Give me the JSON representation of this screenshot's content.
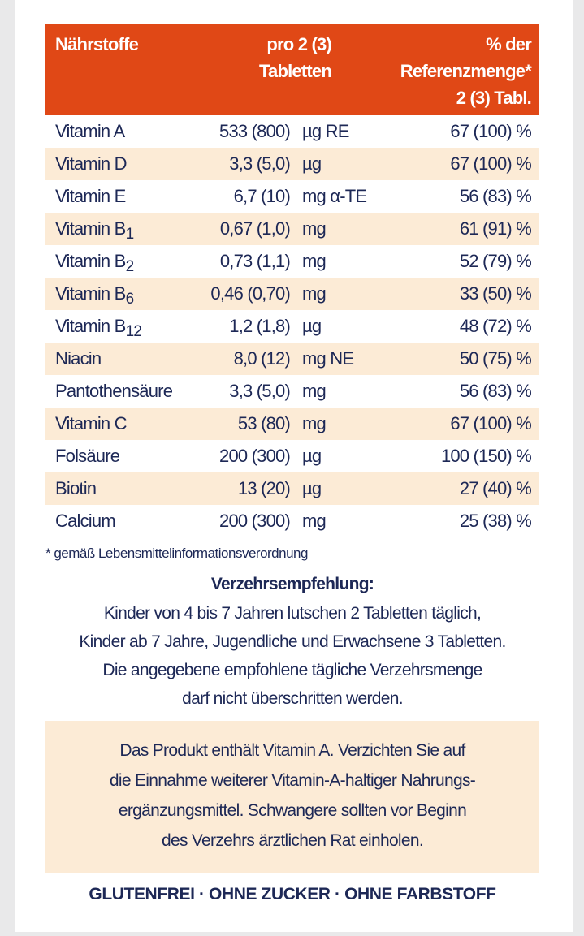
{
  "colors": {
    "header": "#e04816",
    "stripe": "#fcebd6",
    "text": "#1d2856"
  },
  "table": {
    "headers": {
      "nutrient": "Nährstoffe",
      "amount_line1": "pro 2 (3)",
      "amount_line2": "Tabletten",
      "ref_line1": "% der",
      "ref_line2": "Referenzmenge*",
      "ref_line3": "2 (3) Tabl."
    },
    "rows": [
      {
        "name": "Vitamin A",
        "sub": "",
        "amount": "533 (800)",
        "unit": "µg RE",
        "percent": "67 (100) %"
      },
      {
        "name": "Vitamin D",
        "sub": "",
        "amount": "3,3 (5,0)",
        "unit": "µg",
        "percent": "67 (100) %"
      },
      {
        "name": "Vitamin E",
        "sub": "",
        "amount": "6,7 (10)",
        "unit": "mg α-TE",
        "percent": "56 (83) %"
      },
      {
        "name": "Vitamin B",
        "sub": "1",
        "amount": "0,67 (1,0)",
        "unit": "mg",
        "percent": "61 (91) %"
      },
      {
        "name": "Vitamin B",
        "sub": "2",
        "amount": "0,73 (1,1)",
        "unit": "mg",
        "percent": "52 (79) %"
      },
      {
        "name": "Vitamin B",
        "sub": "6",
        "amount": "0,46 (0,70)",
        "unit": "mg",
        "percent": "33 (50) %"
      },
      {
        "name": "Vitamin B",
        "sub": "12",
        "amount": "1,2 (1,8)",
        "unit": "µg",
        "percent": "48 (72) %"
      },
      {
        "name": "Niacin",
        "sub": "",
        "amount": "8,0 (12)",
        "unit": "mg NE",
        "percent": "50 (75) %"
      },
      {
        "name": "Pantothensäure",
        "sub": "",
        "amount": "3,3 (5,0)",
        "unit": "mg",
        "percent": "56 (83) %"
      },
      {
        "name": "Vitamin C",
        "sub": "",
        "amount": "53 (80)",
        "unit": "mg",
        "percent": "67 (100) %"
      },
      {
        "name": "Folsäure",
        "sub": "",
        "amount": "200 (300)",
        "unit": "µg",
        "percent": "100 (150) %"
      },
      {
        "name": "Biotin",
        "sub": "",
        "amount": "13 (20)",
        "unit": "µg",
        "percent": "27 (40) %"
      },
      {
        "name": "Calcium",
        "sub": "",
        "amount": "200 (300)",
        "unit": "mg",
        "percent": "25 (38) %"
      }
    ]
  },
  "footnote": "* gemäß Lebensmittelinformationsverordnung",
  "recommendation": {
    "title": "Verzehrsempfehlung:",
    "lines": [
      "Kinder von 4 bis 7 Jahren lutschen 2 Tabletten täglich,",
      "Kinder ab 7 Jahre, Jugendliche und Erwachsene 3 Tabletten.",
      "Die angegebene empfohlene tägliche Verzehrsmenge",
      "darf nicht überschritten werden."
    ]
  },
  "warning": {
    "lines": [
      "Das Produkt enthält Vitamin A. Verzichten Sie auf",
      "die Einnahme weiterer Vitamin-A-haltiger Nahrungs-",
      "ergänzungsmittel. Schwangere sollten vor Beginn",
      "des Verzehrs ärztlichen Rat einholen."
    ]
  },
  "claims": "GLUTENFREI · OHNE ZUCKER · OHNE FARBSTOFF"
}
